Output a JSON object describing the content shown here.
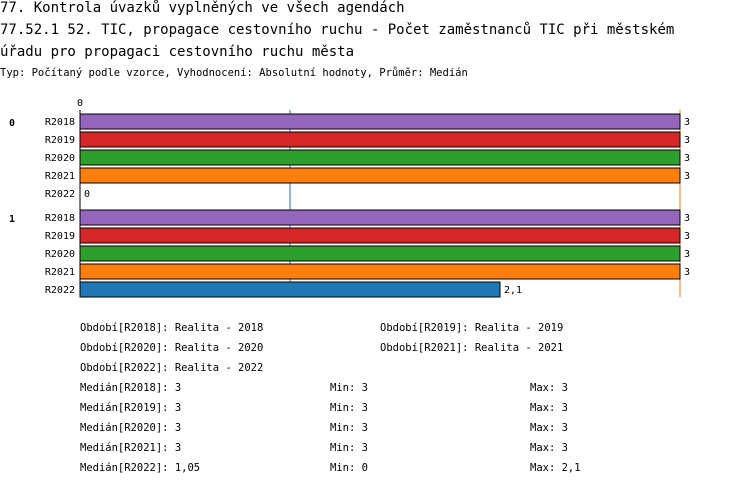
{
  "header": {
    "title_line1": "77. Kontrola úvazků vyplněných ve všech agendách",
    "title_line2": "77.52.1 52. TIC, propagace cestovního ruchu - Počet zaměstnanců TIC při městském",
    "title_line3": "úřadu pro propagaci cestovního ruchu města",
    "subtitle": "Typ: Počítaný podle vzorce, Vyhodnocení: Absolutní hodnoty, Průměr: Medián"
  },
  "chart_data": {
    "type": "bar",
    "orientation": "horizontal",
    "axis_tick_label": "0",
    "xlim": [
      0,
      3
    ],
    "groups": [
      {
        "label": "0",
        "bars": [
          {
            "category": "R2018",
            "value": 3,
            "value_label": "3"
          },
          {
            "category": "R2019",
            "value": 3,
            "value_label": "3"
          },
          {
            "category": "R2020",
            "value": 3,
            "value_label": "3"
          },
          {
            "category": "R2021",
            "value": 3,
            "value_label": "3"
          },
          {
            "category": "R2022",
            "value": 0,
            "value_label": "0"
          }
        ]
      },
      {
        "label": "1",
        "bars": [
          {
            "category": "R2018",
            "value": 3,
            "value_label": "3"
          },
          {
            "category": "R2019",
            "value": 3,
            "value_label": "3"
          },
          {
            "category": "R2020",
            "value": 3,
            "value_label": "3"
          },
          {
            "category": "R2021",
            "value": 3,
            "value_label": "3"
          },
          {
            "category": "R2022",
            "value": 2.1,
            "value_label": "2,1"
          }
        ]
      }
    ],
    "reference_lines": [
      {
        "value": 1.05,
        "color": "#1f6eb0"
      },
      {
        "value": 3,
        "color": "#ff7f0e"
      }
    ],
    "series_colors": {
      "R2018": "#9467bd",
      "R2019": "#d62728",
      "R2020": "#2ca02c",
      "R2021": "#ff7f0e",
      "R2022": "#1f77b4"
    }
  },
  "legend": {
    "periods": [
      "Období[R2018]: Realita - 2018",
      "Období[R2019]: Realita - 2019",
      "Období[R2020]: Realita - 2020",
      "Období[R2021]: Realita - 2021",
      "Období[R2022]: Realita - 2022"
    ],
    "stats": [
      {
        "median": "Medián[R2018]: 3",
        "min": "Min: 3",
        "max": "Max: 3"
      },
      {
        "median": "Medián[R2019]: 3",
        "min": "Min: 3",
        "max": "Max: 3"
      },
      {
        "median": "Medián[R2020]: 3",
        "min": "Min: 3",
        "max": "Max: 3"
      },
      {
        "median": "Medián[R2021]: 3",
        "min": "Min: 3",
        "max": "Max: 3"
      },
      {
        "median": "Medián[R2022]: 1,05",
        "min": "Min: 0",
        "max": "Max: 2,1"
      }
    ]
  }
}
